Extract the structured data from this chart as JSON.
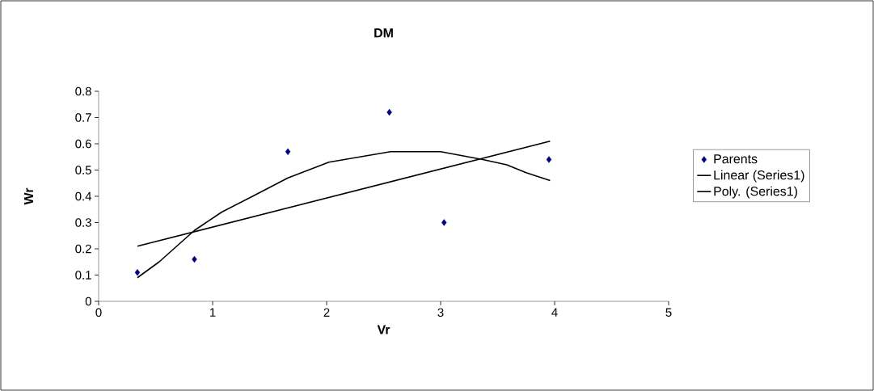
{
  "chart_data": {
    "type": "scatter",
    "title": "DM",
    "xlabel": "Vr",
    "ylabel": "Wr",
    "xlim": [
      0,
      5
    ],
    "ylim": [
      0,
      0.8
    ],
    "xticks": [
      0,
      1,
      2,
      3,
      4,
      5
    ],
    "yticks": [
      0,
      0.1,
      0.2,
      0.3,
      0.4,
      0.5,
      0.6,
      0.7,
      0.8
    ],
    "grid": false,
    "legend": "right",
    "series": [
      {
        "name": "Parents",
        "color": "#000080",
        "marker": "diamond",
        "x": [
          0.34,
          0.84,
          1.66,
          2.55,
          3.03,
          3.95
        ],
        "values": [
          0.11,
          0.16,
          0.57,
          0.72,
          0.3,
          0.54
        ]
      },
      {
        "name": "Linear (Series1)",
        "type": "line",
        "marker": "none",
        "color": "#000000",
        "line_style": "solid",
        "x": [
          0.34,
          3.96
        ],
        "values": [
          0.21,
          0.61
        ]
      },
      {
        "name": "Poly. (Series1)",
        "type": "line",
        "marker": "none",
        "color": "#000000",
        "line_style": "solid",
        "x": [
          0.34,
          0.53,
          0.84,
          1.08,
          1.35,
          1.66,
          2.02,
          2.29,
          2.56,
          3.0,
          3.37,
          3.58,
          3.75,
          3.96
        ],
        "values": [
          0.09,
          0.15,
          0.27,
          0.34,
          0.4,
          0.47,
          0.53,
          0.55,
          0.57,
          0.57,
          0.54,
          0.52,
          0.49,
          0.46
        ]
      }
    ]
  }
}
